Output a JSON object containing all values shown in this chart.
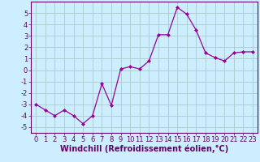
{
  "xlabel": "Windchill (Refroidissement éolien,°C)",
  "x": [
    0,
    1,
    2,
    3,
    4,
    5,
    6,
    7,
    8,
    9,
    10,
    11,
    12,
    13,
    14,
    15,
    16,
    17,
    18,
    19,
    20,
    21,
    22,
    23
  ],
  "y": [
    -3.0,
    -3.5,
    -4.0,
    -3.5,
    -4.0,
    -4.7,
    -4.0,
    -1.2,
    -3.1,
    0.1,
    0.3,
    0.1,
    0.8,
    3.1,
    3.1,
    5.5,
    4.9,
    3.5,
    1.5,
    1.1,
    0.8,
    1.5,
    1.6,
    1.6
  ],
  "line_color": "#990099",
  "marker": "D",
  "marker_size": 2,
  "background_color": "#cceeff",
  "grid_color": "#aacccc",
  "ylim": [
    -5.5,
    6.0
  ],
  "xlim": [
    -0.5,
    23.5
  ],
  "yticks": [
    -5,
    -4,
    -3,
    -2,
    -1,
    0,
    1,
    2,
    3,
    4,
    5
  ],
  "xticks": [
    0,
    1,
    2,
    3,
    4,
    5,
    6,
    7,
    8,
    9,
    10,
    11,
    12,
    13,
    14,
    15,
    16,
    17,
    18,
    19,
    20,
    21,
    22,
    23
  ],
  "tick_fontsize": 6,
  "label_fontsize": 7,
  "axis_color": "#660066"
}
